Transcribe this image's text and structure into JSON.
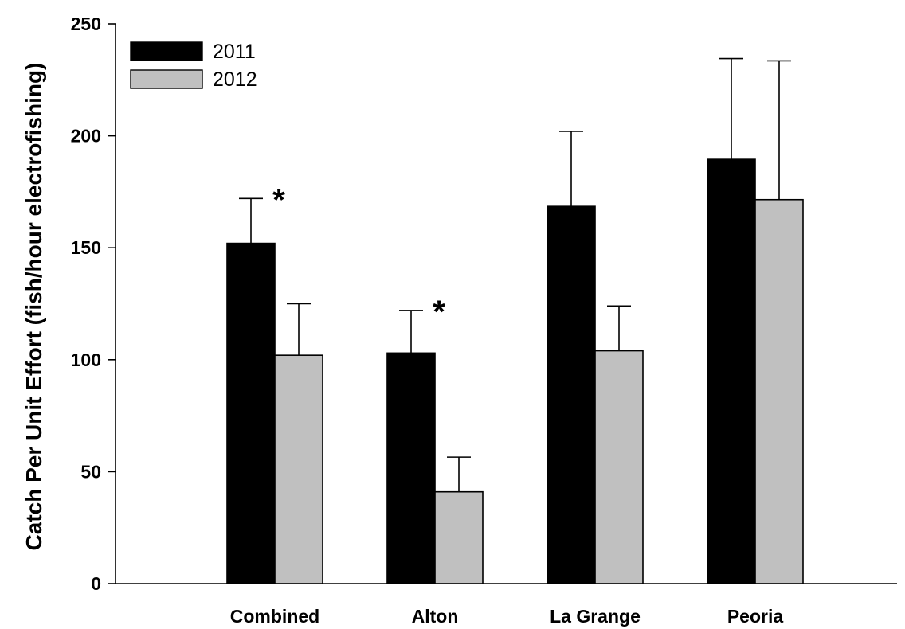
{
  "chart_data": {
    "type": "bar",
    "title": "",
    "xlabel": "",
    "ylabel": "Catch Per Unit Effort (fish/hour electrofishing)",
    "categories": [
      "Combined",
      "Alton",
      "La Grange",
      "Peoria"
    ],
    "ylim": [
      0,
      250
    ],
    "yticks": [
      0,
      50,
      100,
      150,
      200,
      250
    ],
    "grid": false,
    "legend_position": "top-left",
    "series": [
      {
        "name": "2011",
        "color": "#000000",
        "values": [
          152,
          103,
          168.5,
          189.5
        ],
        "error_upper": [
          20,
          19,
          33.5,
          45
        ]
      },
      {
        "name": "2012",
        "color": "#c0c0c0",
        "values": [
          102,
          41,
          104,
          171.5
        ],
        "error_upper": [
          23,
          15.5,
          20,
          62
        ]
      }
    ],
    "annotations": [
      {
        "text": "*",
        "category": "Combined"
      },
      {
        "text": "*",
        "category": "Alton"
      }
    ]
  }
}
